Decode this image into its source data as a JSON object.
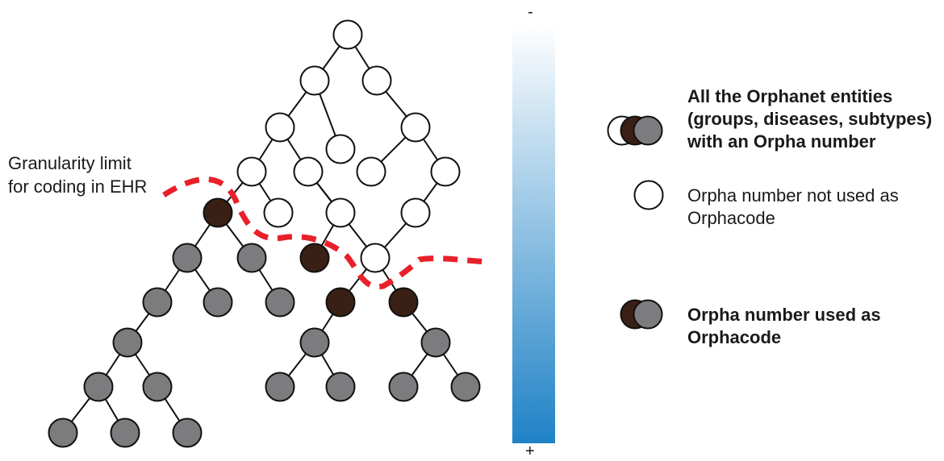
{
  "left_label": {
    "line1": "Granularity limit",
    "line2": "for coding in EHR"
  },
  "scale": {
    "top_sign": "-",
    "bottom_sign": "+",
    "color_top": "#ffffff",
    "color_bottom": "#1f82c6"
  },
  "legend": {
    "all_entities": {
      "line1": "All the Orphanet entities",
      "line2": "(groups, diseases, subtypes)",
      "line3": "with an Orpha number"
    },
    "not_used": {
      "line1": "Orpha number not used as",
      "line2": "Orphacode"
    },
    "used": {
      "line1": "Orpha number used as",
      "line2": "Orphacode"
    }
  },
  "colors": {
    "white_node": "#ffffff",
    "dark_node": "#3a2014",
    "grey_node": "#7c7c7e",
    "dashed_line": "#e8202a",
    "edge": "#111111"
  }
}
